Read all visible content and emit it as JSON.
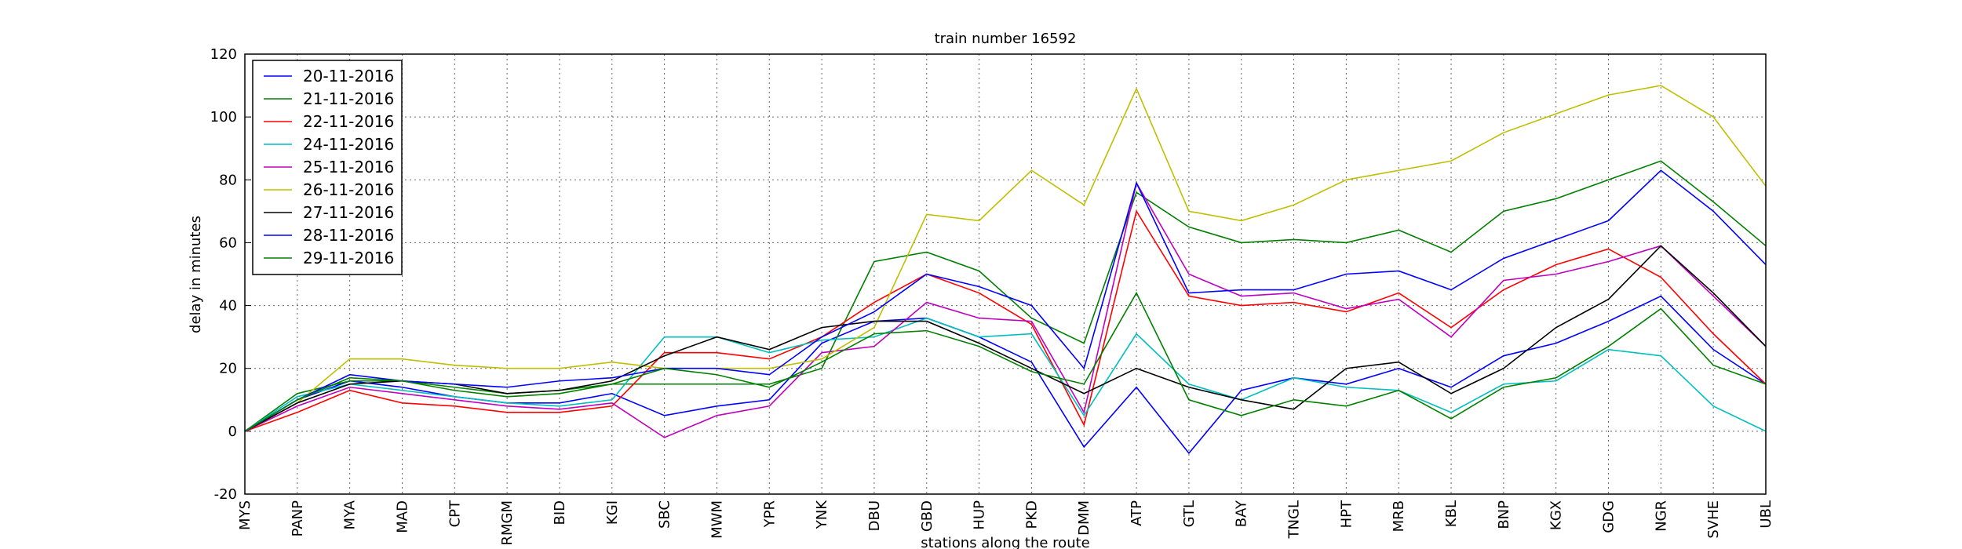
{
  "chart_data": {
    "type": "line",
    "title": "train number 16592",
    "x_label": "stations along the route",
    "y_label": "delay in minutes",
    "categories": [
      "MYS",
      "PANP",
      "MYA",
      "MAD",
      "CPT",
      "RMGM",
      "BID",
      "KGI",
      "SBC",
      "MWM",
      "YPR",
      "YNK",
      "DBU",
      "GBD",
      "HUP",
      "PKD",
      "DMM",
      "ATP",
      "GTL",
      "BAY",
      "TNGL",
      "HPT",
      "MRB",
      "KBL",
      "BNP",
      "KGX",
      "GDG",
      "NGR",
      "SVHE",
      "UBL"
    ],
    "ylim": [
      -20,
      120
    ],
    "yticks": [
      -20,
      0,
      20,
      40,
      60,
      80,
      100,
      120
    ],
    "grid": true,
    "legend": "upper left",
    "series": [
      {
        "name": "20-11-2016",
        "color": "#0000ff",
        "values": [
          0,
          10,
          16,
          14,
          11,
          9,
          9,
          12,
          5,
          8,
          10,
          28,
          35,
          36,
          30,
          22,
          -5,
          14,
          -7,
          13,
          17,
          15,
          20,
          14,
          24,
          28,
          35,
          43,
          26,
          15
        ]
      },
      {
        "name": "21-11-2016",
        "color": "#008000",
        "values": [
          0,
          12,
          16,
          16,
          14,
          12,
          13,
          15,
          15,
          15,
          15,
          20,
          54,
          57,
          51,
          36,
          28,
          76,
          65,
          60,
          61,
          60,
          64,
          57,
          70,
          74,
          80,
          86,
          73,
          59
        ]
      },
      {
        "name": "22-11-2016",
        "color": "#ff0000",
        "values": [
          0,
          6,
          13,
          9,
          8,
          6,
          6,
          8,
          25,
          25,
          23,
          30,
          41,
          50,
          44,
          34,
          2,
          70,
          43,
          40,
          41,
          38,
          44,
          33,
          45,
          53,
          58,
          49,
          31,
          15
        ]
      },
      {
        "name": "24-11-2016",
        "color": "#00bfbf",
        "values": [
          0,
          11,
          15,
          13,
          11,
          9,
          8,
          10,
          30,
          30,
          25,
          29,
          30,
          36,
          30,
          31,
          5,
          31,
          15,
          10,
          17,
          14,
          13,
          6,
          15,
          16,
          26,
          24,
          8,
          0
        ]
      },
      {
        "name": "25-11-2016",
        "color": "#bf00bf",
        "values": [
          0,
          8,
          14,
          12,
          10,
          8,
          7,
          9,
          -2,
          5,
          8,
          25,
          27,
          41,
          36,
          35,
          6,
          79,
          50,
          43,
          44,
          39,
          42,
          30,
          48,
          50,
          54,
          59,
          43,
          27
        ]
      },
      {
        "name": "26-11-2016",
        "color": "#bfbf00",
        "values": [
          0,
          9,
          23,
          23,
          21,
          20,
          20,
          22,
          20,
          20,
          20,
          23,
          33,
          69,
          67,
          83,
          72,
          109,
          70,
          67,
          72,
          80,
          83,
          86,
          95,
          101,
          107,
          110,
          100,
          78
        ]
      },
      {
        "name": "27-11-2016",
        "color": "#000000",
        "values": [
          0,
          9,
          15,
          16,
          15,
          12,
          13,
          16,
          24,
          30,
          26,
          33,
          35,
          35,
          28,
          20,
          12,
          20,
          14,
          10,
          7,
          20,
          22,
          12,
          20,
          33,
          42,
          59,
          44,
          27
        ]
      },
      {
        "name": "28-11-2016",
        "color": "#0000ff",
        "values": [
          0,
          10,
          18,
          16,
          15,
          14,
          16,
          17,
          20,
          20,
          18,
          30,
          38,
          50,
          46,
          40,
          20,
          79,
          44,
          45,
          45,
          50,
          51,
          45,
          55,
          61,
          67,
          83,
          70,
          53
        ]
      },
      {
        "name": "29-11-2016",
        "color": "#008000",
        "values": [
          0,
          10,
          17,
          16,
          13,
          11,
          12,
          15,
          20,
          18,
          14,
          22,
          31,
          32,
          27,
          19,
          15,
          44,
          10,
          5,
          10,
          8,
          13,
          4,
          14,
          17,
          27,
          39,
          21,
          15
        ]
      }
    ]
  }
}
